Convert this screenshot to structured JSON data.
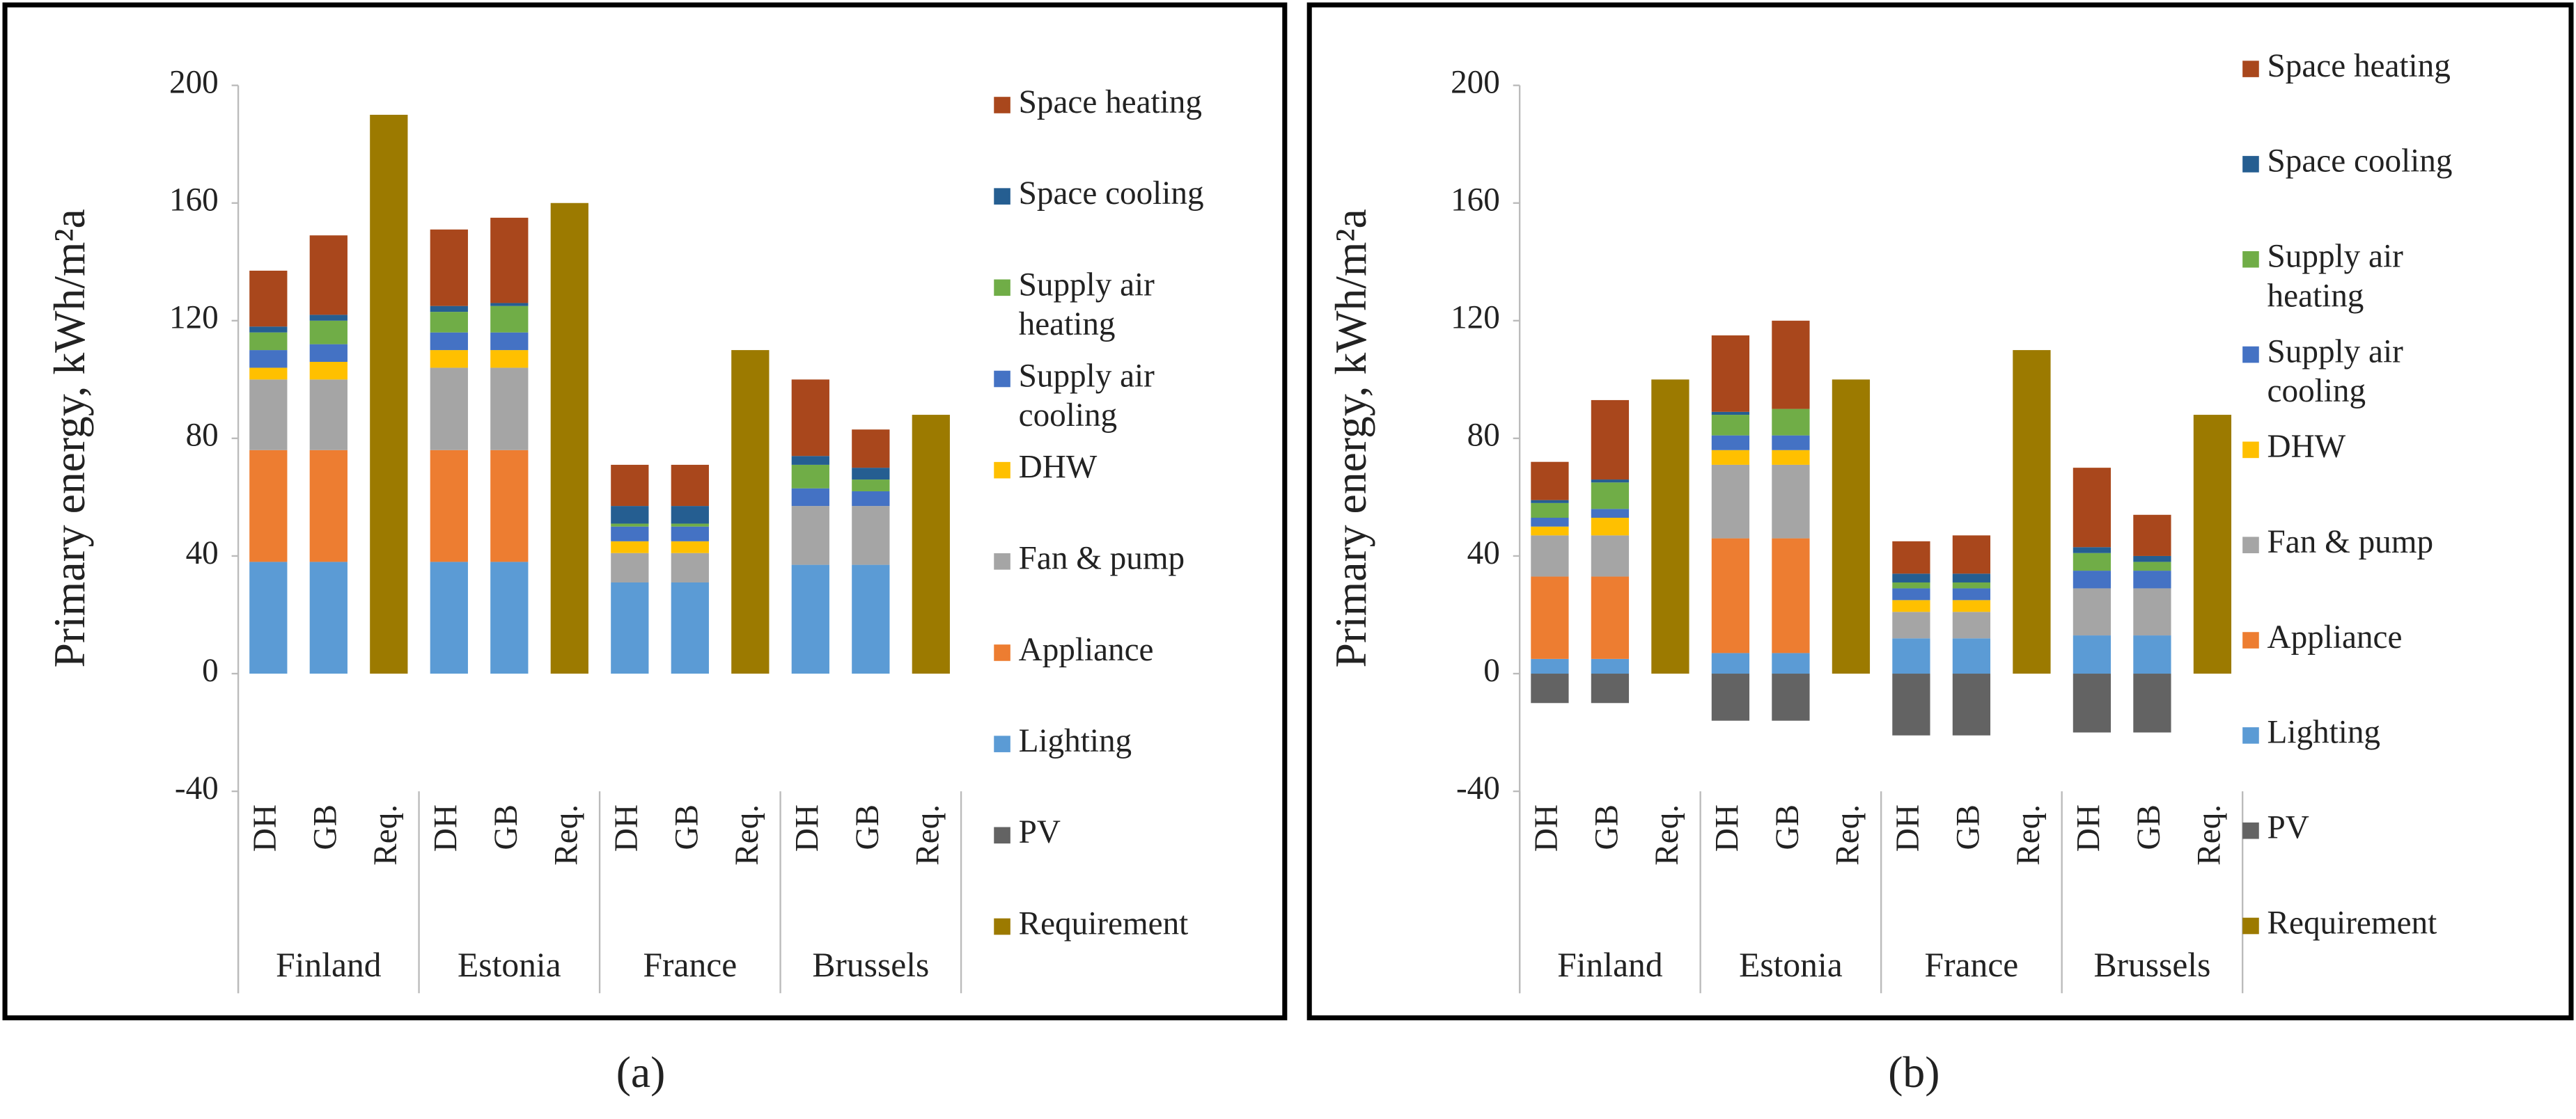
{
  "chart_data": [
    {
      "type": "bar",
      "stacked": true,
      "caption": "(a)",
      "y_label": "Primary energy, kWh/m²a",
      "ylim": [
        -40,
        200
      ],
      "yticks": [
        -40,
        0,
        40,
        80,
        120,
        160,
        200
      ],
      "grid": false,
      "legend": "right",
      "groups": [
        "Finland",
        "Estonia",
        "France",
        "Brussels"
      ],
      "categories": [
        "DH",
        "GB",
        "Req.",
        "DH",
        "GB",
        "Req.",
        "DH",
        "GB",
        "Req.",
        "DH",
        "GB",
        "Req."
      ],
      "series": [
        {
          "name": "Space heating",
          "color": "#a9471c",
          "values": [
            19,
            27,
            null,
            26,
            29,
            null,
            14,
            14,
            null,
            26,
            13,
            null
          ]
        },
        {
          "name": "Space cooling",
          "color": "#255e91",
          "values": [
            2,
            2,
            null,
            2,
            1,
            null,
            6,
            6,
            null,
            3,
            4,
            null
          ]
        },
        {
          "name": "Supply air heating",
          "color": "#70ad47",
          "values": [
            6,
            8,
            null,
            7,
            9,
            null,
            1,
            1,
            null,
            8,
            4,
            null
          ]
        },
        {
          "name": "Supply air cooling",
          "color": "#4472c4",
          "values": [
            6,
            6,
            null,
            6,
            6,
            null,
            5,
            5,
            null,
            6,
            5,
            null
          ]
        },
        {
          "name": "DHW",
          "color": "#ffc000",
          "values": [
            4,
            6,
            null,
            6,
            6,
            null,
            4,
            4,
            null,
            0,
            0,
            null
          ]
        },
        {
          "name": "Fan & pump",
          "color": "#a5a5a5",
          "values": [
            24,
            24,
            null,
            28,
            28,
            null,
            10,
            10,
            null,
            20,
            20,
            null
          ]
        },
        {
          "name": "Appliance",
          "color": "#ed7d31",
          "values": [
            38,
            38,
            null,
            38,
            38,
            null,
            0,
            0,
            null,
            0,
            0,
            null
          ]
        },
        {
          "name": "Lighting",
          "color": "#5b9bd5",
          "values": [
            38,
            38,
            null,
            38,
            38,
            null,
            31,
            31,
            null,
            37,
            37,
            null
          ]
        },
        {
          "name": "PV",
          "color": "#636363",
          "values": [
            0,
            0,
            null,
            0,
            0,
            null,
            0,
            0,
            null,
            0,
            0,
            null
          ]
        },
        {
          "name": "Requirement",
          "color": "#9c7a00",
          "values": [
            null,
            null,
            190,
            null,
            null,
            160,
            null,
            null,
            110,
            null,
            null,
            88
          ]
        }
      ]
    },
    {
      "type": "bar",
      "stacked": true,
      "caption": "(b)",
      "y_label": "Primary energy, kWh/m²a",
      "ylim": [
        -40,
        200
      ],
      "yticks": [
        -40,
        0,
        40,
        80,
        120,
        160,
        200
      ],
      "grid": false,
      "legend": "right",
      "groups": [
        "Finland",
        "Estonia",
        "France",
        "Brussels"
      ],
      "categories": [
        "DH",
        "GB",
        "Req.",
        "DH",
        "GB",
        "Req.",
        "DH",
        "GB",
        "Req.",
        "DH",
        "GB",
        "Req."
      ],
      "series": [
        {
          "name": "Space heating",
          "color": "#a9471c",
          "values": [
            13,
            27,
            null,
            26,
            30,
            null,
            11,
            13,
            null,
            27,
            14,
            null
          ]
        },
        {
          "name": "Space cooling",
          "color": "#255e91",
          "values": [
            1,
            1,
            null,
            1,
            0,
            null,
            3,
            3,
            null,
            2,
            2,
            null
          ]
        },
        {
          "name": "Supply air heating",
          "color": "#70ad47",
          "values": [
            5,
            9,
            null,
            7,
            9,
            null,
            2,
            2,
            null,
            6,
            3,
            null
          ]
        },
        {
          "name": "Supply air cooling",
          "color": "#4472c4",
          "values": [
            3,
            3,
            null,
            5,
            5,
            null,
            4,
            4,
            null,
            6,
            6,
            null
          ]
        },
        {
          "name": "DHW",
          "color": "#ffc000",
          "values": [
            3,
            6,
            null,
            5,
            5,
            null,
            4,
            4,
            null,
            0,
            0,
            null
          ]
        },
        {
          "name": "Fan & pump",
          "color": "#a5a5a5",
          "values": [
            14,
            14,
            null,
            25,
            25,
            null,
            9,
            9,
            null,
            16,
            16,
            null
          ]
        },
        {
          "name": "Appliance",
          "color": "#ed7d31",
          "values": [
            28,
            28,
            null,
            39,
            39,
            null,
            0,
            0,
            null,
            0,
            0,
            null
          ]
        },
        {
          "name": "Lighting",
          "color": "#5b9bd5",
          "values": [
            5,
            5,
            null,
            7,
            7,
            null,
            12,
            12,
            null,
            13,
            13,
            null
          ]
        },
        {
          "name": "PV",
          "color": "#636363",
          "values": [
            -10,
            -10,
            null,
            -16,
            -16,
            null,
            -21,
            -21,
            null,
            -20,
            -20,
            null
          ]
        },
        {
          "name": "Requirement",
          "color": "#9c7a00",
          "values": [
            null,
            null,
            100,
            null,
            null,
            100,
            null,
            null,
            110,
            null,
            null,
            88
          ]
        }
      ]
    }
  ]
}
